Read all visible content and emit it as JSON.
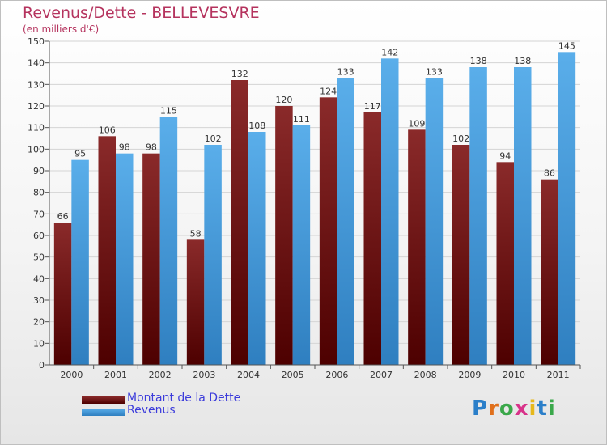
{
  "title": "Revenus/Dette - BELLEVESVRE",
  "subtitle": "(en milliers d'€)",
  "colors": {
    "title": "#b5335e",
    "dette": "#7a1c1c",
    "revenus": "#4ea3e0",
    "legend_text": "#3b3bdb"
  },
  "legend": [
    {
      "label": "Montant de la Dette",
      "color": "#6b1212"
    },
    {
      "label": "Revenus",
      "color": "#4ea3e0"
    }
  ],
  "logo": "Proxiti",
  "chart_data": {
    "type": "bar",
    "categories": [
      "2000",
      "2001",
      "2002",
      "2003",
      "2004",
      "2005",
      "2006",
      "2007",
      "2008",
      "2009",
      "2010",
      "2011"
    ],
    "series": [
      {
        "name": "Montant de la Dette",
        "values": [
          66,
          106,
          98,
          58,
          132,
          120,
          124,
          117,
          109,
          102,
          94,
          86
        ]
      },
      {
        "name": "Revenus",
        "values": [
          95,
          98,
          115,
          102,
          108,
          111,
          133,
          142,
          133,
          138,
          138,
          145
        ]
      }
    ],
    "ylim": [
      0,
      150
    ],
    "yticks": [
      0,
      10,
      20,
      30,
      40,
      50,
      60,
      70,
      80,
      90,
      100,
      110,
      120,
      130,
      140,
      150
    ],
    "grid": true,
    "legend_position": "bottom-left"
  }
}
